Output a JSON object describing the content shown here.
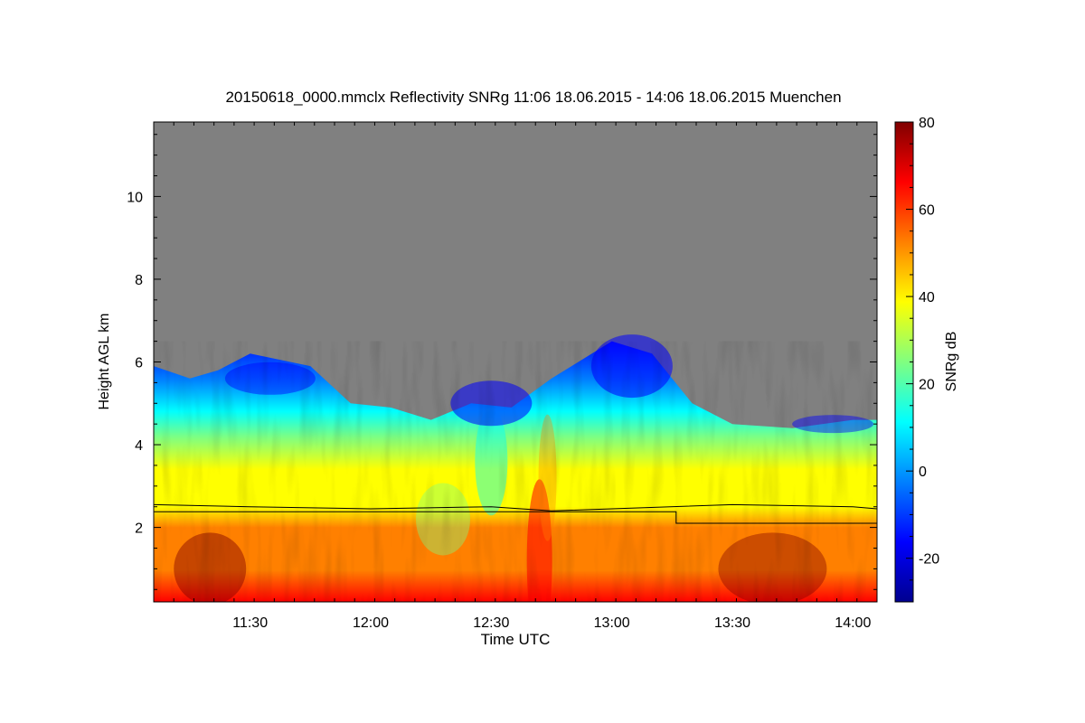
{
  "chart_data": {
    "type": "heatmap",
    "title": "20150618_0000.mmclx Reflectivity SNRg   11:06 18.06.2015 - 14:06 18.06.2015 Muenchen",
    "xlabel": "Time UTC",
    "ylabel": "Height AGL km",
    "x_range": [
      "11:06",
      "14:06"
    ],
    "x_ticks": [
      "11:30",
      "12:00",
      "12:30",
      "13:00",
      "13:30",
      "14:00"
    ],
    "ylim": [
      0.2,
      11.8
    ],
    "y_ticks": [
      "2",
      "4",
      "6",
      "8",
      "10"
    ],
    "colorbar": {
      "label": "SNRg dB",
      "range": [
        -30,
        80
      ],
      "ticks": [
        "80",
        "60",
        "40",
        "20",
        "0",
        "-20"
      ],
      "colormap": [
        "#00008f",
        "#0000ff",
        "#0080ff",
        "#00ffff",
        "#80ff80",
        "#ffff00",
        "#ff8000",
        "#ff0000",
        "#800000"
      ]
    },
    "background_color": "#808080",
    "echo_top_km": [
      {
        "time": "11:06",
        "height": 5.9
      },
      {
        "time": "11:15",
        "height": 5.6
      },
      {
        "time": "11:22",
        "height": 5.8
      },
      {
        "time": "11:30",
        "height": 6.2
      },
      {
        "time": "11:45",
        "height": 5.9
      },
      {
        "time": "11:55",
        "height": 5.0
      },
      {
        "time": "12:05",
        "height": 4.9
      },
      {
        "time": "12:15",
        "height": 4.6
      },
      {
        "time": "12:25",
        "height": 5.0
      },
      {
        "time": "12:35",
        "height": 4.9
      },
      {
        "time": "12:45",
        "height": 5.6
      },
      {
        "time": "13:00",
        "height": 6.5
      },
      {
        "time": "13:10",
        "height": 6.2
      },
      {
        "time": "13:20",
        "height": 5.0
      },
      {
        "time": "13:30",
        "height": 4.5
      },
      {
        "time": "13:45",
        "height": 4.4
      },
      {
        "time": "14:00",
        "height": 4.6
      },
      {
        "time": "14:06",
        "height": 4.6
      }
    ],
    "lines": [
      {
        "points": [
          {
            "time": "11:06",
            "height": 2.55
          },
          {
            "time": "11:30",
            "height": 2.5
          },
          {
            "time": "12:00",
            "height": 2.45
          },
          {
            "time": "12:30",
            "height": 2.5
          },
          {
            "time": "12:45",
            "height": 2.4
          },
          {
            "time": "13:00",
            "height": 2.45
          },
          {
            "time": "13:30",
            "height": 2.55
          },
          {
            "time": "14:00",
            "height": 2.5
          },
          {
            "time": "14:06",
            "height": 2.45
          }
        ]
      },
      {
        "points": [
          {
            "time": "11:06",
            "height": 2.38
          },
          {
            "time": "13:16",
            "height": 2.38
          },
          {
            "time": "13:16",
            "height": 2.1
          },
          {
            "time": "14:06",
            "height": 2.1
          }
        ]
      }
    ]
  }
}
